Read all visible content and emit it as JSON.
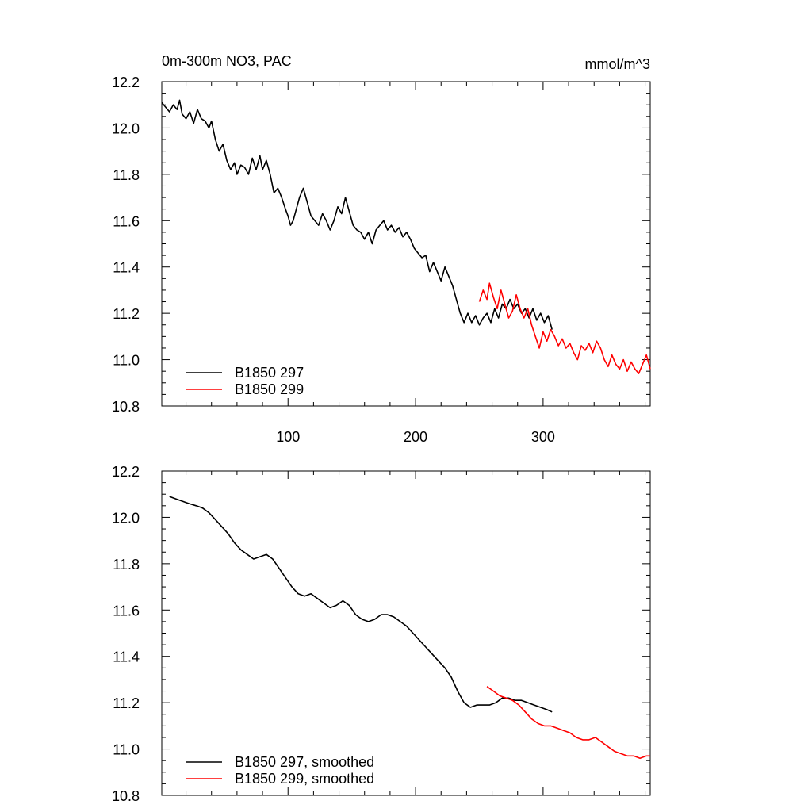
{
  "chart_data": [
    {
      "type": "line",
      "title": "0m-300m NO3, PAC",
      "units": "mmol/m^3",
      "xlim": [
        1,
        384
      ],
      "ylim": [
        10.8,
        12.2
      ],
      "x_ticks": [
        100,
        200,
        300
      ],
      "x_tick_labels": [
        "100",
        "200",
        "300"
      ],
      "y_ticks": [
        10.8,
        11.0,
        11.2,
        11.4,
        11.6,
        11.8,
        12.0,
        12.2
      ],
      "y_tick_labels": [
        "10.8",
        "11.0",
        "11.2",
        "11.4",
        "11.6",
        "11.8",
        "12.0",
        "12.2"
      ],
      "legend_position": "bottom-left",
      "grid": false,
      "series": [
        {
          "name": "B1850 297",
          "color": "#000000",
          "points": [
            [
              1,
              12.11
            ],
            [
              4,
              12.09
            ],
            [
              7,
              12.07
            ],
            [
              10,
              12.1
            ],
            [
              13,
              12.08
            ],
            [
              15,
              12.12
            ],
            [
              17,
              12.06
            ],
            [
              20,
              12.04
            ],
            [
              23,
              12.07
            ],
            [
              26,
              12.02
            ],
            [
              29,
              12.08
            ],
            [
              32,
              12.04
            ],
            [
              35,
              12.03
            ],
            [
              38,
              12.0
            ],
            [
              40,
              12.03
            ],
            [
              43,
              11.95
            ],
            [
              46,
              11.9
            ],
            [
              49,
              11.93
            ],
            [
              52,
              11.86
            ],
            [
              55,
              11.82
            ],
            [
              58,
              11.85
            ],
            [
              60,
              11.8
            ],
            [
              63,
              11.84
            ],
            [
              66,
              11.83
            ],
            [
              69,
              11.8
            ],
            [
              72,
              11.87
            ],
            [
              75,
              11.82
            ],
            [
              78,
              11.88
            ],
            [
              80,
              11.82
            ],
            [
              83,
              11.86
            ],
            [
              86,
              11.8
            ],
            [
              89,
              11.72
            ],
            [
              92,
              11.74
            ],
            [
              95,
              11.7
            ],
            [
              98,
              11.65
            ],
            [
              100,
              11.62
            ],
            [
              102,
              11.58
            ],
            [
              104,
              11.6
            ],
            [
              106,
              11.64
            ],
            [
              109,
              11.7
            ],
            [
              112,
              11.74
            ],
            [
              115,
              11.68
            ],
            [
              118,
              11.62
            ],
            [
              121,
              11.6
            ],
            [
              124,
              11.58
            ],
            [
              127,
              11.63
            ],
            [
              130,
              11.6
            ],
            [
              133,
              11.56
            ],
            [
              136,
              11.6
            ],
            [
              139,
              11.66
            ],
            [
              142,
              11.63
            ],
            [
              145,
              11.7
            ],
            [
              148,
              11.64
            ],
            [
              151,
              11.58
            ],
            [
              154,
              11.56
            ],
            [
              157,
              11.55
            ],
            [
              160,
              11.52
            ],
            [
              163,
              11.55
            ],
            [
              166,
              11.5
            ],
            [
              169,
              11.56
            ],
            [
              172,
              11.58
            ],
            [
              175,
              11.6
            ],
            [
              178,
              11.56
            ],
            [
              181,
              11.58
            ],
            [
              184,
              11.55
            ],
            [
              187,
              11.57
            ],
            [
              190,
              11.53
            ],
            [
              193,
              11.55
            ],
            [
              196,
              11.52
            ],
            [
              199,
              11.48
            ],
            [
              202,
              11.46
            ],
            [
              205,
              11.44
            ],
            [
              208,
              11.45
            ],
            [
              211,
              11.38
            ],
            [
              214,
              11.42
            ],
            [
              217,
              11.38
            ],
            [
              220,
              11.34
            ],
            [
              223,
              11.4
            ],
            [
              226,
              11.36
            ],
            [
              229,
              11.32
            ],
            [
              232,
              11.26
            ],
            [
              235,
              11.2
            ],
            [
              238,
              11.16
            ],
            [
              241,
              11.2
            ],
            [
              244,
              11.16
            ],
            [
              247,
              11.19
            ],
            [
              250,
              11.15
            ],
            [
              253,
              11.18
            ],
            [
              256,
              11.2
            ],
            [
              259,
              11.16
            ],
            [
              262,
              11.22
            ],
            [
              265,
              11.18
            ],
            [
              268,
              11.24
            ],
            [
              271,
              11.22
            ],
            [
              274,
              11.26
            ],
            [
              277,
              11.22
            ],
            [
              280,
              11.24
            ],
            [
              283,
              11.2
            ],
            [
              286,
              11.22
            ],
            [
              289,
              11.18
            ],
            [
              292,
              11.22
            ],
            [
              295,
              11.17
            ],
            [
              298,
              11.2
            ],
            [
              301,
              11.16
            ],
            [
              304,
              11.19
            ],
            [
              307,
              11.13
            ]
          ]
        },
        {
          "name": "B1850 299",
          "color": "#ff0000",
          "points": [
            [
              250,
              11.25
            ],
            [
              253,
              11.3
            ],
            [
              256,
              11.26
            ],
            [
              258,
              11.33
            ],
            [
              261,
              11.27
            ],
            [
              264,
              11.22
            ],
            [
              267,
              11.3
            ],
            [
              270,
              11.24
            ],
            [
              273,
              11.18
            ],
            [
              276,
              11.21
            ],
            [
              279,
              11.28
            ],
            [
              282,
              11.22
            ],
            [
              285,
              11.18
            ],
            [
              288,
              11.22
            ],
            [
              291,
              11.15
            ],
            [
              294,
              11.1
            ],
            [
              297,
              11.05
            ],
            [
              300,
              11.12
            ],
            [
              303,
              11.08
            ],
            [
              306,
              11.13
            ],
            [
              309,
              11.1
            ],
            [
              312,
              11.06
            ],
            [
              315,
              11.09
            ],
            [
              318,
              11.05
            ],
            [
              321,
              11.07
            ],
            [
              324,
              11.03
            ],
            [
              327,
              11.0
            ],
            [
              330,
              11.06
            ],
            [
              333,
              11.04
            ],
            [
              336,
              11.07
            ],
            [
              339,
              11.03
            ],
            [
              342,
              11.08
            ],
            [
              345,
              11.05
            ],
            [
              348,
              11.0
            ],
            [
              351,
              10.97
            ],
            [
              354,
              11.02
            ],
            [
              357,
              10.98
            ],
            [
              360,
              10.96
            ],
            [
              363,
              11.0
            ],
            [
              366,
              10.95
            ],
            [
              369,
              10.99
            ],
            [
              372,
              10.96
            ],
            [
              375,
              10.94
            ],
            [
              378,
              10.98
            ],
            [
              381,
              11.02
            ],
            [
              384,
              10.96
            ]
          ]
        }
      ]
    },
    {
      "type": "line",
      "xlim": [
        1,
        384
      ],
      "ylim": [
        10.8,
        12.2
      ],
      "x_ticks": [
        100,
        200,
        300
      ],
      "y_ticks": [
        10.8,
        11.0,
        11.2,
        11.4,
        11.6,
        11.8,
        12.0,
        12.2
      ],
      "y_tick_labels": [
        "10.8",
        "11.0",
        "11.2",
        "11.4",
        "11.6",
        "11.8",
        "12.0",
        "12.2"
      ],
      "legend_position": "bottom-left",
      "grid": false,
      "series": [
        {
          "name": "B1850 297, smoothed",
          "color": "#000000",
          "points": [
            [
              7,
              12.09
            ],
            [
              12,
              12.08
            ],
            [
              17,
              12.07
            ],
            [
              22,
              12.06
            ],
            [
              28,
              12.05
            ],
            [
              33,
              12.04
            ],
            [
              38,
              12.02
            ],
            [
              43,
              11.99
            ],
            [
              48,
              11.96
            ],
            [
              53,
              11.93
            ],
            [
              58,
              11.89
            ],
            [
              63,
              11.86
            ],
            [
              68,
              11.84
            ],
            [
              73,
              11.82
            ],
            [
              78,
              11.83
            ],
            [
              83,
              11.84
            ],
            [
              88,
              11.82
            ],
            [
              93,
              11.78
            ],
            [
              98,
              11.74
            ],
            [
              103,
              11.7
            ],
            [
              108,
              11.67
            ],
            [
              113,
              11.66
            ],
            [
              118,
              11.67
            ],
            [
              123,
              11.65
            ],
            [
              128,
              11.63
            ],
            [
              133,
              11.61
            ],
            [
              138,
              11.62
            ],
            [
              143,
              11.64
            ],
            [
              148,
              11.62
            ],
            [
              153,
              11.58
            ],
            [
              158,
              11.56
            ],
            [
              163,
              11.55
            ],
            [
              168,
              11.56
            ],
            [
              173,
              11.58
            ],
            [
              178,
              11.58
            ],
            [
              183,
              11.57
            ],
            [
              188,
              11.55
            ],
            [
              193,
              11.53
            ],
            [
              198,
              11.5
            ],
            [
              203,
              11.47
            ],
            [
              208,
              11.44
            ],
            [
              213,
              11.41
            ],
            [
              218,
              11.38
            ],
            [
              223,
              11.35
            ],
            [
              228,
              11.31
            ],
            [
              233,
              11.25
            ],
            [
              238,
              11.2
            ],
            [
              243,
              11.18
            ],
            [
              248,
              11.19
            ],
            [
              253,
              11.19
            ],
            [
              258,
              11.19
            ],
            [
              263,
              11.2
            ],
            [
              268,
              11.22
            ],
            [
              273,
              11.22
            ],
            [
              278,
              11.21
            ],
            [
              283,
              11.21
            ],
            [
              288,
              11.2
            ],
            [
              293,
              11.19
            ],
            [
              298,
              11.18
            ],
            [
              303,
              11.17
            ],
            [
              307,
              11.16
            ]
          ]
        },
        {
          "name": "B1850 299, smoothed",
          "color": "#ff0000",
          "points": [
            [
              256,
              11.27
            ],
            [
              261,
              11.25
            ],
            [
              266,
              11.23
            ],
            [
              271,
              11.22
            ],
            [
              276,
              11.21
            ],
            [
              281,
              11.19
            ],
            [
              286,
              11.16
            ],
            [
              291,
              11.13
            ],
            [
              296,
              11.11
            ],
            [
              301,
              11.1
            ],
            [
              306,
              11.1
            ],
            [
              311,
              11.09
            ],
            [
              316,
              11.08
            ],
            [
              321,
              11.07
            ],
            [
              326,
              11.05
            ],
            [
              331,
              11.04
            ],
            [
              336,
              11.04
            ],
            [
              341,
              11.05
            ],
            [
              346,
              11.03
            ],
            [
              351,
              11.01
            ],
            [
              356,
              10.99
            ],
            [
              361,
              10.98
            ],
            [
              366,
              10.97
            ],
            [
              371,
              10.97
            ],
            [
              376,
              10.96
            ],
            [
              381,
              10.97
            ],
            [
              384,
              10.97
            ]
          ]
        }
      ]
    }
  ]
}
